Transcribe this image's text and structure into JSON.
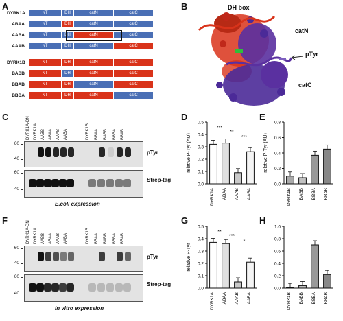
{
  "panels": {
    "A": "A",
    "B": "B",
    "C": "C",
    "D": "D",
    "E": "E",
    "F": "F",
    "G": "G",
    "H": "H"
  },
  "colors": {
    "blue": "#4a6fb5",
    "red": "#d9331a"
  },
  "segments": [
    "NT",
    "DH",
    "catN",
    "catC"
  ],
  "constructs_top": [
    {
      "name": "DYRK1A",
      "pattern": [
        "blue",
        "blue",
        "blue",
        "blue"
      ]
    },
    {
      "name": "ABAA",
      "pattern": [
        "blue",
        "red",
        "blue",
        "blue"
      ]
    },
    {
      "name": "AABA",
      "pattern": [
        "blue",
        "blue",
        "red",
        "blue"
      ]
    },
    {
      "name": "AAAB",
      "pattern": [
        "blue",
        "blue",
        "blue",
        "red"
      ]
    }
  ],
  "constructs_bottom": [
    {
      "name": "DYRK1B",
      "pattern": [
        "red",
        "red",
        "red",
        "red"
      ]
    },
    {
      "name": "BABB",
      "pattern": [
        "red",
        "blue",
        "red",
        "red"
      ]
    },
    {
      "name": "BBAB",
      "pattern": [
        "red",
        "red",
        "blue",
        "red"
      ]
    },
    {
      "name": "BBBA",
      "pattern": [
        "red",
        "red",
        "red",
        "blue"
      ]
    }
  ],
  "structure": {
    "dh_box": "DH box",
    "catN": "catN",
    "pTyr": "pTyr",
    "catC": "catC"
  },
  "blotC": {
    "lanes": [
      "DYRK1A-DN",
      "DYRK1A",
      "AABB",
      "ABAA",
      "AAAB",
      "AABA",
      "DYRK1B",
      "BBAA",
      "BABB",
      "BBBA",
      "BBAB"
    ],
    "pTyr": "pTyr",
    "strep": "Strep-tag",
    "mw": [
      "60",
      "40",
      "60",
      "40"
    ],
    "caption": "E.coli expression"
  },
  "blotF": {
    "lanes": [
      "DYRK1A-DN",
      "DYRK1A",
      "AABB",
      "ABAA",
      "AAAB",
      "AABA",
      "DYRK1B",
      "BBAA",
      "BABB",
      "BBBA",
      "BBAB"
    ],
    "pTyr": "pTyr",
    "strep": "Strep-tag",
    "mw": [
      "60",
      "40",
      "60",
      "40"
    ],
    "caption": "In vitro expression"
  },
  "chart_data": [
    {
      "panel": "D",
      "type": "bar",
      "categories": [
        "DYRK1A",
        "ABAA",
        "AAAB",
        "AABA"
      ],
      "values": [
        0.32,
        0.33,
        0.09,
        0.26
      ],
      "ylabel": "relative P-Tyr (AU)",
      "ylim": [
        0,
        0.5
      ],
      "yticks": [
        "0.0",
        "0.1",
        "0.2",
        "0.3",
        "0.4",
        "0.5"
      ],
      "stars": [
        "***",
        "**",
        "***"
      ]
    },
    {
      "panel": "E",
      "type": "bar",
      "categories": [
        "DYRK1B",
        "BABB",
        "BBBA",
        "BBAB"
      ],
      "values": [
        0.1,
        0.08,
        0.37,
        0.45
      ],
      "ylabel": "relative P-Tyr (AU)",
      "ylim": [
        0,
        0.8
      ],
      "yticks": [
        "0.0",
        "0.2",
        "0.4",
        "0.6",
        "0.8"
      ]
    },
    {
      "panel": "G",
      "type": "bar",
      "categories": [
        "DYRK1A",
        "ABAA",
        "AAAB",
        "AABA"
      ],
      "values": [
        0.37,
        0.36,
        0.05,
        0.21
      ],
      "ylabel": "relative P-Tyr",
      "ylim": [
        0,
        0.5
      ],
      "yticks": [
        "0.0",
        "0.1",
        "0.2",
        "0.3",
        "0.4",
        "0.5"
      ],
      "stars": [
        "**",
        "***",
        "*",
        "**",
        "***",
        "**"
      ]
    },
    {
      "panel": "H",
      "type": "bar",
      "categories": [
        "DYRK1B",
        "BABB",
        "BBBA",
        "BBAB"
      ],
      "values": [
        0.01,
        0.04,
        0.7,
        0.22
      ],
      "ylabel": "",
      "ylim": [
        0,
        1.0
      ],
      "yticks": [
        "0.0",
        "0.2",
        "0.4",
        "0.6",
        "0.8",
        "1.0"
      ]
    }
  ]
}
